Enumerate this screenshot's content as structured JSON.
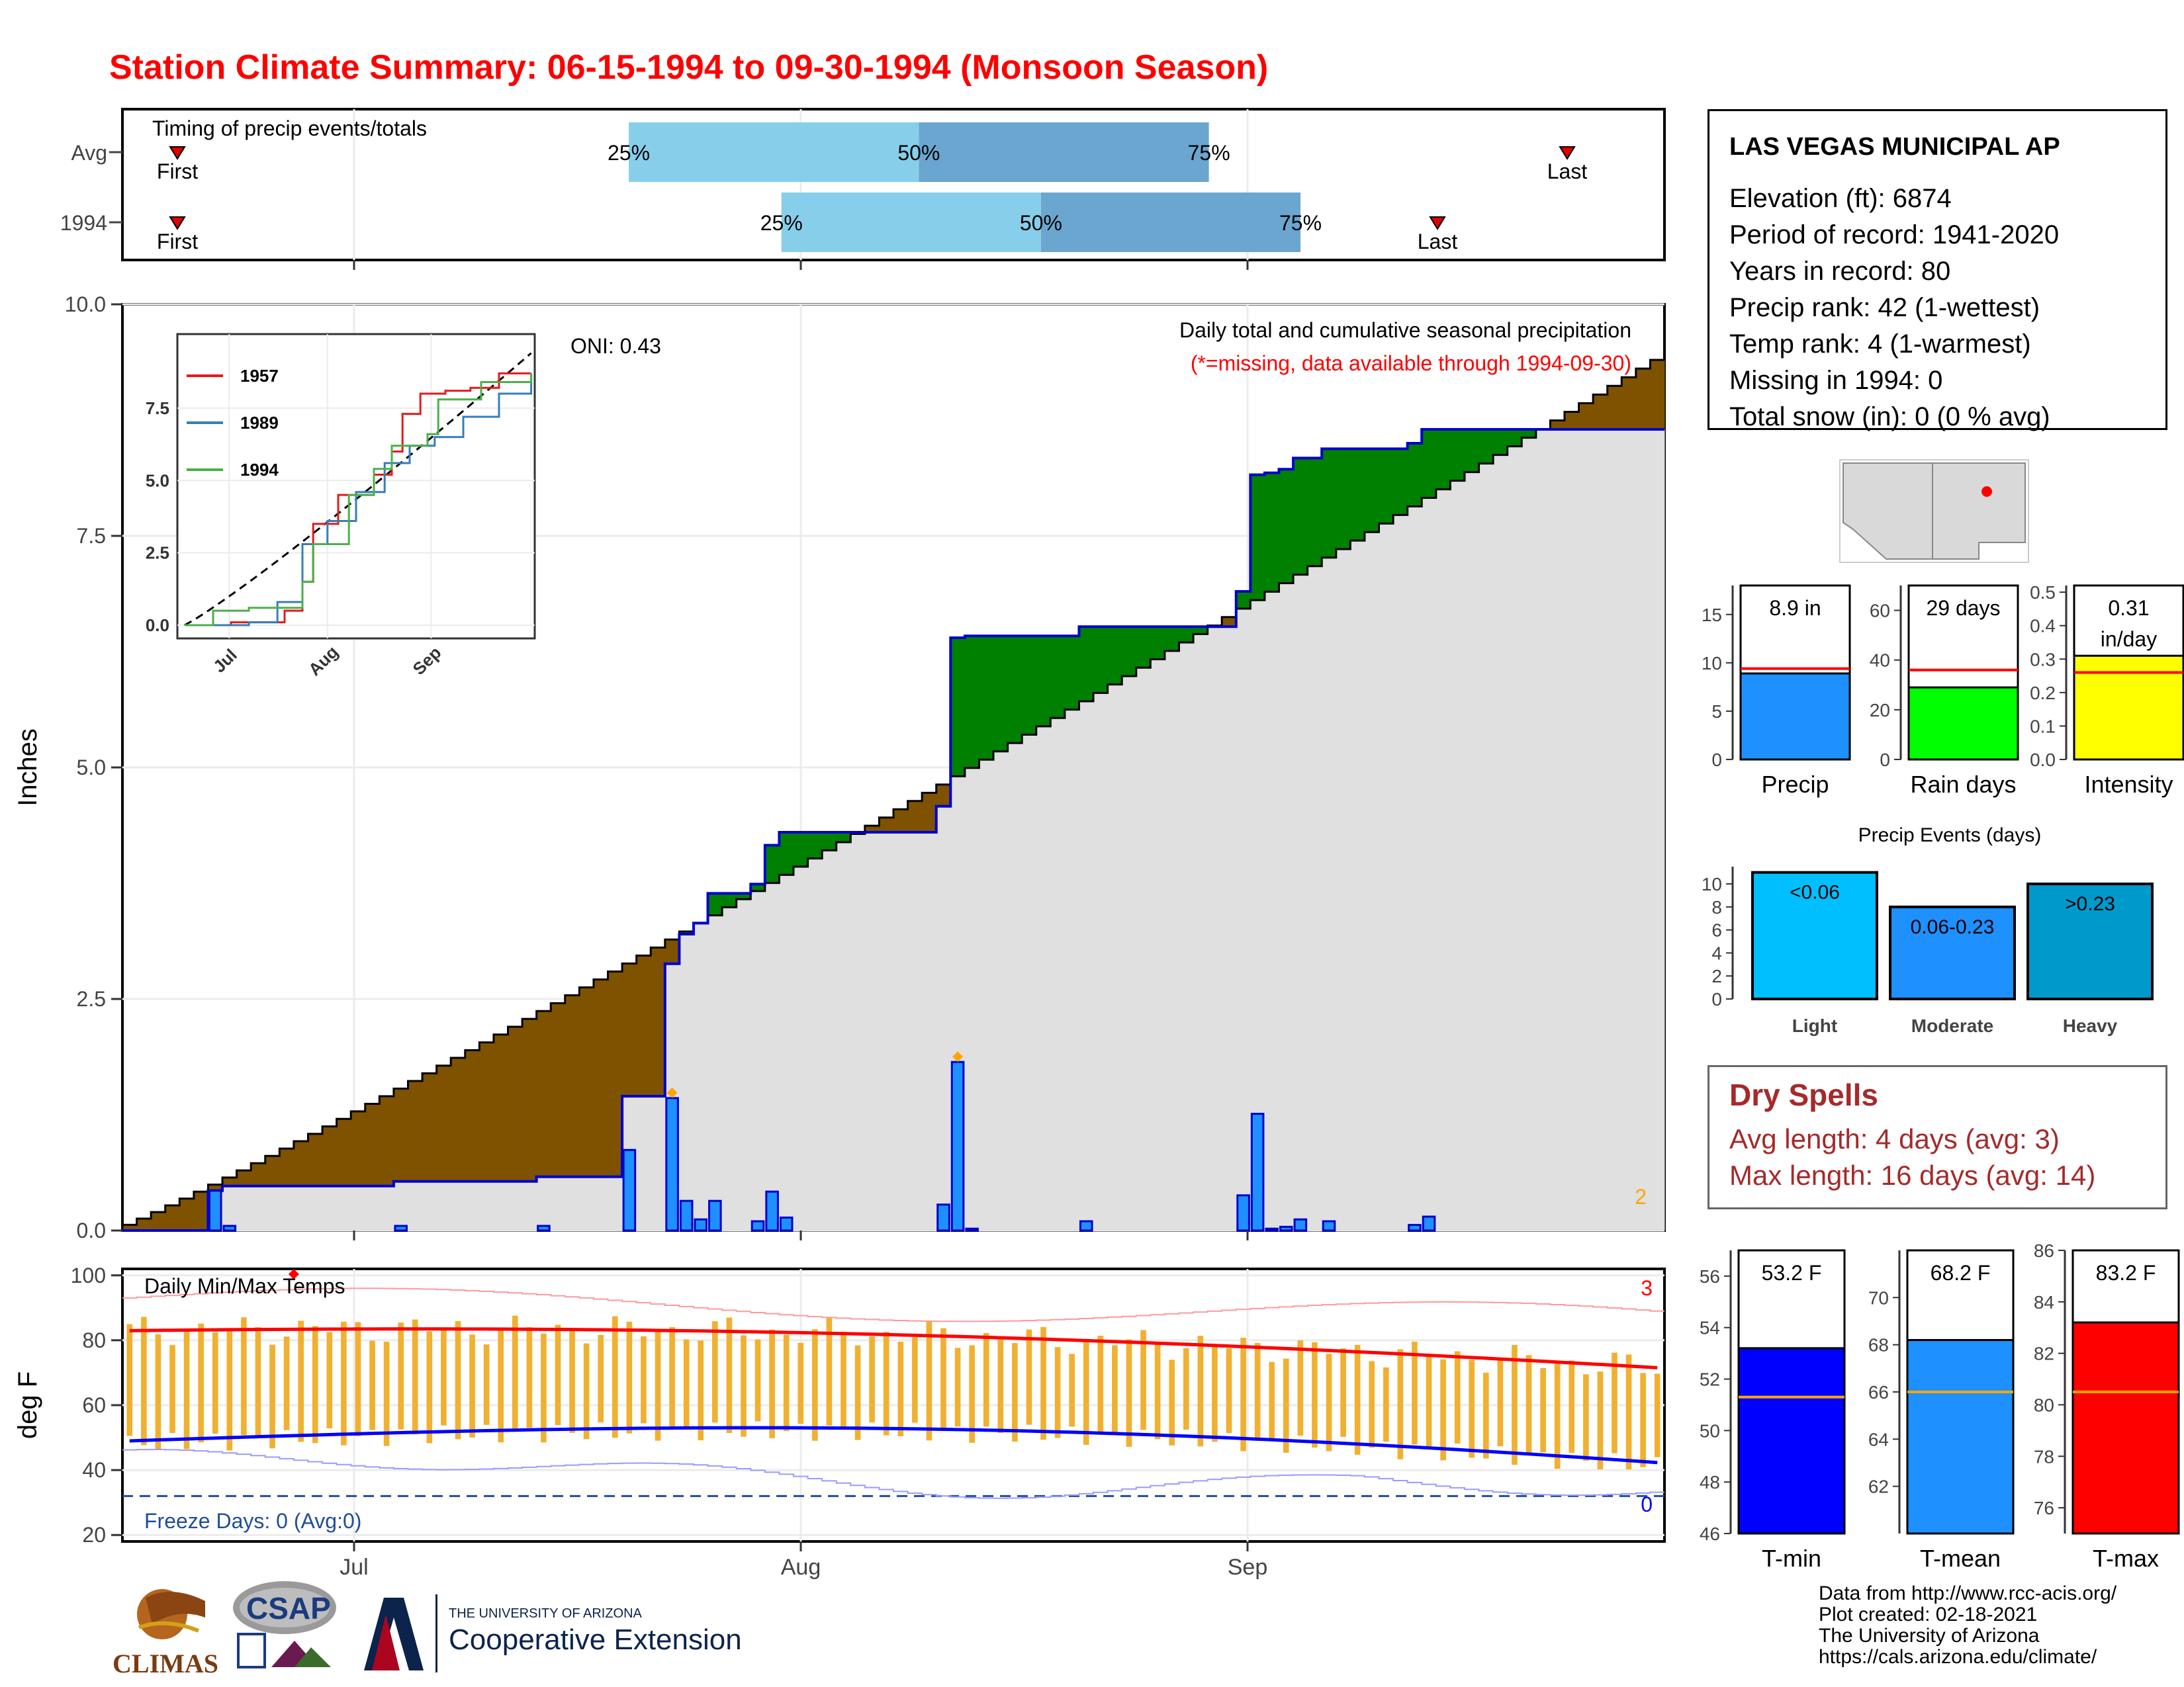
{
  "title": "Station Climate Summary: 06-15-1994 to 09-30-1994 (Monsoon Season)",
  "colors": {
    "title": "#ff0000",
    "precip_bar": "#1e90ff",
    "cum_fill": "#e0e0e0",
    "above": "#008000",
    "below": "#7f5200",
    "iqr_light": "#87ceeb",
    "iqr_dark": "#6aa6cf",
    "temp_bar": "#f0b030",
    "tmax": "#ff0000",
    "tmin": "#0000ff",
    "dry": "#a52a2a"
  },
  "timing": {
    "label": "Timing of precip events/totals",
    "rows": [
      {
        "name": "Avg",
        "first": "First",
        "last": "Last",
        "p25": "25%",
        "p50": "50%",
        "p75": "75%",
        "first_day": 0.0,
        "d25": 0.31,
        "d50": 0.5,
        "d75": 0.69,
        "last_day": 0.97
      },
      {
        "name": "1994",
        "first": "First",
        "last": "Last",
        "p25": "25%",
        "p50": "50%",
        "p75": "75%",
        "first_day": 0.0,
        "d25": 0.41,
        "d50": 0.58,
        "d75": 0.75,
        "last_day": 0.85
      }
    ]
  },
  "precip_panel": {
    "ylabel": "Inches",
    "yticks": [
      "0.0",
      "2.5",
      "5.0",
      "7.5",
      "10.0"
    ],
    "ymax": 10.0,
    "note1": "Daily total and cumulative seasonal precipitation",
    "note2": "(*=missing, data available through 1994-09-30)",
    "oni": "ONI: 0.43",
    "corner_count": "2"
  },
  "inset": {
    "yticks": [
      "0.0",
      "2.5",
      "5.0",
      "7.5"
    ],
    "xticks": [
      "Jul",
      "Aug",
      "Sep"
    ],
    "legend": [
      {
        "name": "1957",
        "color": "#e41a1c"
      },
      {
        "name": "1989",
        "color": "#377eb8"
      },
      {
        "name": "1994",
        "color": "#4daf4a"
      }
    ]
  },
  "temp_panel": {
    "title": "Daily Min/Max Temps",
    "ylabel": "deg F",
    "yticks": [
      "20",
      "40",
      "60",
      "80",
      "100"
    ],
    "freeze": "Freeze Days: 0 (Avg:0)",
    "count_hot": "3",
    "count_cold": "0",
    "xticks": [
      "Jul",
      "Aug",
      "Sep"
    ]
  },
  "info": {
    "station": "LAS VEGAS MUNICIPAL AP",
    "lines": [
      "Elevation (ft): 6874",
      "Period of record: 1941-2020",
      "Years in record: 80",
      "Precip rank: 42 (1-wettest)",
      "Temp rank: 4 (1-warmest)",
      "Missing in 1994: 0",
      "Total snow (in): 0 (0 % avg)"
    ]
  },
  "summary_bars": [
    {
      "label": "Precip",
      "value_text": "8.9 in",
      "value": 8.9,
      "avg": 9.4,
      "ymax": 18,
      "yticks": [
        "0",
        "5",
        "10",
        "15"
      ],
      "color": "#1e90ff"
    },
    {
      "label": "Rain days",
      "value_text": "29 days",
      "value": 29,
      "avg": 36,
      "ymax": 70,
      "yticks": [
        "0",
        "20",
        "40",
        "60"
      ],
      "color": "#00ff00"
    },
    {
      "label": "Intensity",
      "value_text": "0.31",
      "value_text2": "in/day",
      "value": 0.31,
      "avg": 0.26,
      "ymax": 0.52,
      "yticks": [
        "0.0",
        "0.1",
        "0.2",
        "0.3",
        "0.4",
        "0.5"
      ],
      "color": "#ffff00"
    }
  ],
  "events": {
    "title": "Precip Events (days)",
    "yticks": [
      "0",
      "2",
      "4",
      "6",
      "8",
      "10"
    ],
    "bars": [
      {
        "name": "Light",
        "label": "<0.06",
        "value": 11,
        "color": "#00bfff"
      },
      {
        "name": "Moderate",
        "label": "0.06-0.23",
        "value": 8,
        "color": "#1e90ff"
      },
      {
        "name": "Heavy",
        "label": ">0.23",
        "value": 10,
        "color": "#0099cc"
      }
    ]
  },
  "dry_spells": {
    "title": "Dry Spells",
    "avg": "Avg length: 4 days (avg: 3)",
    "max": "Max length: 16 days (avg: 14)"
  },
  "temp_bars": [
    {
      "label": "T-min",
      "value_text": "53.2 F",
      "value": 53.2,
      "avg": 51.3,
      "ymin": 46,
      "ymax": 57,
      "yticks": [
        "46",
        "48",
        "50",
        "52",
        "54",
        "56"
      ],
      "color": "#0000ff"
    },
    {
      "label": "T-mean",
      "value_text": "68.2 F",
      "value": 68.2,
      "avg": 66.0,
      "ymin": 60,
      "ymax": 72,
      "yticks": [
        "62",
        "64",
        "66",
        "68",
        "70"
      ],
      "color": "#1e90ff"
    },
    {
      "label": "T-max",
      "value_text": "83.2 F",
      "value": 83.2,
      "avg": 80.5,
      "ymin": 75,
      "ymax": 86,
      "yticks": [
        "76",
        "78",
        "80",
        "82",
        "84",
        "86"
      ],
      "color": "#ff0000"
    }
  ],
  "credits": [
    "Data from http://www.rcc-acis.org/",
    "Plot created: 02-18-2021",
    "The University of Arizona",
    "https://cals.arizona.edu/climate/"
  ],
  "logos": {
    "climas": "CLIMAS",
    "csap": "CSAP",
    "ua_small": "THE UNIVERSITY OF ARIZONA",
    "ua_big": "Cooperative Extension"
  },
  "chart_data": [
    {
      "type": "bar",
      "title": "Daily total and cumulative seasonal precipitation",
      "ylabel": "Inches",
      "ylim": [
        0,
        10
      ],
      "x": [
        "Jul",
        "Aug",
        "Sep"
      ],
      "series": [
        {
          "name": "daily_events",
          "values": [
            {
              "date": "06-21",
              "in": 0.43
            },
            {
              "date": "06-22",
              "in": 0.05
            },
            {
              "date": "07-04",
              "in": 0.05
            },
            {
              "date": "07-14",
              "in": 0.05
            },
            {
              "date": "07-20",
              "in": 0.87
            },
            {
              "date": "07-23",
              "in": 1.43
            },
            {
              "date": "07-24",
              "in": 0.32
            },
            {
              "date": "07-25",
              "in": 0.12
            },
            {
              "date": "07-26",
              "in": 0.32
            },
            {
              "date": "07-29",
              "in": 0.1
            },
            {
              "date": "07-30",
              "in": 0.42
            },
            {
              "date": "07-31",
              "in": 0.14
            },
            {
              "date": "08-11",
              "in": 0.28
            },
            {
              "date": "08-12",
              "in": 1.82
            },
            {
              "date": "08-13",
              "in": 0.02
            },
            {
              "date": "08-21",
              "in": 0.1
            },
            {
              "date": "09-01",
              "in": 0.38
            },
            {
              "date": "09-02",
              "in": 1.26
            },
            {
              "date": "09-03",
              "in": 0.02
            },
            {
              "date": "09-04",
              "in": 0.04
            },
            {
              "date": "09-05",
              "in": 0.12
            },
            {
              "date": "09-07",
              "in": 0.1
            },
            {
              "date": "09-13",
              "in": 0.06
            },
            {
              "date": "09-14",
              "in": 0.15
            }
          ]
        }
      ]
    }
  ]
}
